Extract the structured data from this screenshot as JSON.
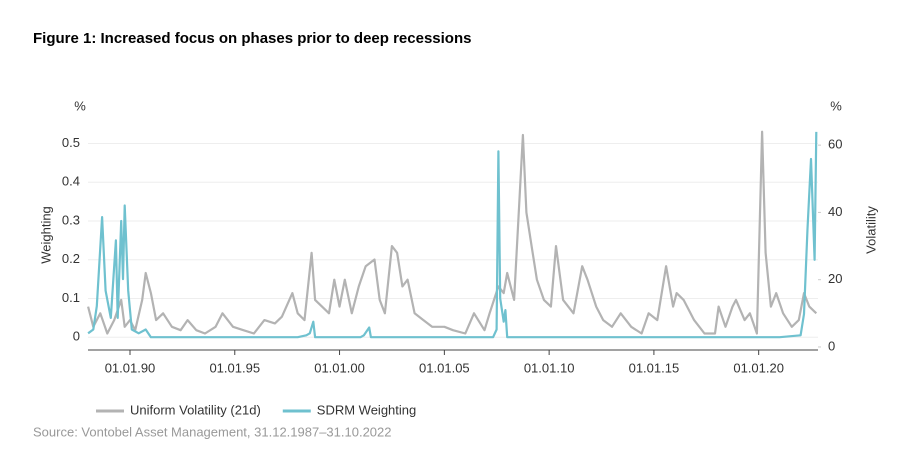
{
  "chart_data": {
    "type": "line",
    "title": "Figure 1: Increased focus on phases prior to deep recessions",
    "y_unit": "%",
    "y2_unit": "%",
    "ylabel": "Weighting",
    "y2label": "Volatility",
    "source": "Source: Vontobel Asset Management, 31.12.1987–31.10.2022",
    "xlim": [
      "1987-12-31",
      "2022-10-31"
    ],
    "xticks": [
      {
        "value": "1990-01-01",
        "label": "01.01.90"
      },
      {
        "value": "1995-01-01",
        "label": "01.01.95"
      },
      {
        "value": "2000-01-01",
        "label": "01.01.00"
      },
      {
        "value": "2005-01-01",
        "label": "01.01.05"
      },
      {
        "value": "2010-01-01",
        "label": "01.01.10"
      },
      {
        "value": "2015-01-01",
        "label": "01.01.15"
      },
      {
        "value": "2020-01-01",
        "label": "01.01.20"
      }
    ],
    "ylim": [
      -0.033,
      0.535
    ],
    "yticks": [
      0,
      0.1,
      0.2,
      0.3,
      0.4,
      0.5
    ],
    "y2lim": [
      -0.9,
      64.5
    ],
    "y2ticks": [
      0,
      20,
      40,
      60
    ],
    "grid": true,
    "series": [
      {
        "name": "Uniform Volatility (21d)",
        "color": "#b3b3b3",
        "axis": "y2",
        "x": [
          "1988-01-01",
          "1988-04-01",
          "1988-08-01",
          "1988-12-01",
          "1989-04-01",
          "1989-08-01",
          "1989-10-01",
          "1990-01-01",
          "1990-04-01",
          "1990-08-01",
          "1990-10-01",
          "1991-01-01",
          "1991-04-01",
          "1991-08-01",
          "1992-01-01",
          "1992-06-01",
          "1992-10-01",
          "1993-03-01",
          "1993-08-01",
          "1994-02-01",
          "1994-06-01",
          "1994-12-01",
          "1995-06-01",
          "1995-12-01",
          "1996-06-01",
          "1996-12-01",
          "1997-04-01",
          "1997-10-01",
          "1998-01-01",
          "1998-05-01",
          "1998-09-01",
          "1998-11-01",
          "1999-03-01",
          "1999-07-01",
          "1999-10-01",
          "2000-01-01",
          "2000-04-01",
          "2000-08-01",
          "2000-12-01",
          "2001-04-01",
          "2001-09-01",
          "2001-12-01",
          "2002-03-01",
          "2002-07-01",
          "2002-10-01",
          "2003-01-01",
          "2003-04-01",
          "2003-08-01",
          "2004-01-01",
          "2004-06-01",
          "2005-01-01",
          "2005-06-01",
          "2006-01-01",
          "2006-06-01",
          "2006-12-01",
          "2007-03-01",
          "2007-08-01",
          "2007-11-01",
          "2008-01-01",
          "2008-05-01",
          "2008-10-01",
          "2008-12-01",
          "2009-03-01",
          "2009-06-01",
          "2009-10-01",
          "2010-02-01",
          "2010-05-01",
          "2010-09-01",
          "2011-03-01",
          "2011-08-01",
          "2011-11-01",
          "2012-04-01",
          "2012-08-01",
          "2013-01-01",
          "2013-06-01",
          "2013-12-01",
          "2014-06-01",
          "2014-10-01",
          "2015-03-01",
          "2015-08-01",
          "2015-12-01",
          "2016-02-01",
          "2016-06-01",
          "2016-12-01",
          "2017-06-01",
          "2017-12-01",
          "2018-02-01",
          "2018-06-01",
          "2018-10-01",
          "2018-12-01",
          "2019-05-01",
          "2019-08-01",
          "2019-12-01",
          "2020-03-01",
          "2020-05-01",
          "2020-08-01",
          "2020-11-01",
          "2021-03-01",
          "2021-08-01",
          "2021-12-01",
          "2022-03-01",
          "2022-06-01",
          "2022-10-01"
        ],
        "values": [
          12,
          6,
          10,
          4,
          8,
          14,
          6,
          8,
          5,
          14,
          22,
          16,
          8,
          10,
          6,
          5,
          8,
          5,
          4,
          6,
          10,
          6,
          5,
          4,
          8,
          7,
          9,
          16,
          10,
          8,
          28,
          14,
          12,
          10,
          20,
          12,
          20,
          10,
          18,
          24,
          26,
          14,
          10,
          30,
          28,
          18,
          20,
          10,
          8,
          6,
          6,
          5,
          4,
          10,
          5,
          10,
          18,
          16,
          22,
          14,
          63,
          40,
          30,
          20,
          14,
          12,
          30,
          14,
          10,
          24,
          20,
          12,
          8,
          6,
          10,
          6,
          4,
          10,
          8,
          24,
          12,
          16,
          14,
          8,
          4,
          4,
          12,
          6,
          12,
          14,
          8,
          10,
          4,
          64,
          28,
          12,
          16,
          10,
          6,
          8,
          16,
          12,
          10
        ]
      },
      {
        "name": "SDRM Weighting",
        "color": "#6fc1cf",
        "axis": "y",
        "x": [
          "1988-01-01",
          "1988-04-01",
          "1988-06-01",
          "1988-09-01",
          "1988-11-01",
          "1989-02-01",
          "1989-05-01",
          "1989-06-01",
          "1989-08-01",
          "1989-09-01",
          "1989-10-01",
          "1989-12-01",
          "1990-02-01",
          "1990-06-01",
          "1990-10-01",
          "1991-01-01",
          "1998-01-01",
          "1998-06-01",
          "1998-08-01",
          "1998-10-01",
          "1998-11-01",
          "2001-01-01",
          "2001-03-01",
          "2001-06-01",
          "2001-07-01",
          "2007-05-01",
          "2007-07-01",
          "2007-08-01",
          "2007-09-01",
          "2007-11-01",
          "2007-12-01",
          "2008-01-01",
          "2021-01-01",
          "2022-01-01",
          "2022-03-01",
          "2022-05-01",
          "2022-07-01",
          "2022-09-01",
          "2022-10-01"
        ],
        "values": [
          0.01,
          0.02,
          0.08,
          0.31,
          0.12,
          0.05,
          0.25,
          0.05,
          0.3,
          0.15,
          0.34,
          0.12,
          0.02,
          0.01,
          0.02,
          0,
          0,
          0.005,
          0.01,
          0.04,
          0,
          0,
          0.005,
          0.025,
          0,
          0,
          0.02,
          0.48,
          0.1,
          0.04,
          0.07,
          0,
          0,
          0.005,
          0.06,
          0.28,
          0.46,
          0.2,
          0.53
        ]
      }
    ]
  }
}
